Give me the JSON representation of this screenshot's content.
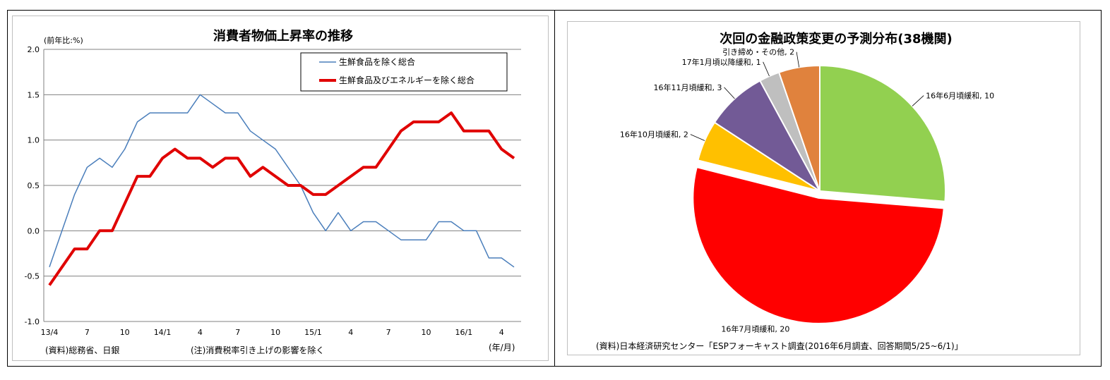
{
  "line_panel": {
    "unit_label": "(前年比:%)",
    "source": "(資料)総務省、日銀",
    "note": "(注)消費税率引き上げの影響を除く",
    "x_unit": "(年/月)"
  },
  "pie_panel": {
    "source": "(資料)日本経済研究センター「ESPフォーキャスト調査(2016年6月調査、回答期間5/25~6/1)」"
  },
  "chart_data": [
    {
      "type": "line",
      "title": "消費者物価上昇率の推移",
      "xlabel": "",
      "ylabel": "",
      "ylim": [
        -1.0,
        2.0
      ],
      "y_ticks": [
        "2.0",
        "1.5",
        "1.0",
        "0.5",
        "0.0",
        "-0.5",
        "-1.0"
      ],
      "x_tick_labels": [
        {
          "i": 0,
          "label": "13/4"
        },
        {
          "i": 3,
          "label": "7"
        },
        {
          "i": 6,
          "label": "10"
        },
        {
          "i": 9,
          "label": "14/1"
        },
        {
          "i": 12,
          "label": "4"
        },
        {
          "i": 15,
          "label": "7"
        },
        {
          "i": 18,
          "label": "10"
        },
        {
          "i": 21,
          "label": "15/1"
        },
        {
          "i": 24,
          "label": "4"
        },
        {
          "i": 27,
          "label": "7"
        },
        {
          "i": 30,
          "label": "10"
        },
        {
          "i": 33,
          "label": "16/1"
        },
        {
          "i": 36,
          "label": "4"
        }
      ],
      "x": [
        "2013/4",
        "2013/5",
        "2013/6",
        "2013/7",
        "2013/8",
        "2013/9",
        "2013/10",
        "2013/11",
        "2013/12",
        "2014/1",
        "2014/2",
        "2014/3",
        "2014/4",
        "2014/5",
        "2014/6",
        "2014/7",
        "2014/8",
        "2014/9",
        "2014/10",
        "2014/11",
        "2014/12",
        "2015/1",
        "2015/2",
        "2015/3",
        "2015/4",
        "2015/5",
        "2015/6",
        "2015/7",
        "2015/8",
        "2015/9",
        "2015/10",
        "2015/11",
        "2015/12",
        "2016/1",
        "2016/2",
        "2016/3",
        "2016/4",
        "2016/5"
      ],
      "grid": true,
      "legend_position": "top-right",
      "series": [
        {
          "name": "生鮮食品を除く総合",
          "color": "#4a7ebb",
          "values": [
            -0.4,
            0.0,
            0.4,
            0.7,
            0.8,
            0.7,
            0.9,
            1.2,
            1.3,
            1.3,
            1.3,
            1.3,
            1.5,
            1.4,
            1.3,
            1.3,
            1.1,
            1.0,
            0.9,
            0.7,
            0.5,
            0.2,
            0.0,
            0.2,
            0.0,
            0.1,
            0.1,
            0.0,
            -0.1,
            -0.1,
            -0.1,
            0.1,
            0.1,
            0.0,
            0.0,
            -0.3,
            -0.3,
            -0.4
          ]
        },
        {
          "name": "生鮮食品及びエネルギーを除く総合",
          "color": "#e00000",
          "values": [
            -0.6,
            -0.4,
            -0.2,
            -0.2,
            0.0,
            0.0,
            0.3,
            0.6,
            0.6,
            0.8,
            0.9,
            0.8,
            0.8,
            0.7,
            0.8,
            0.8,
            0.6,
            0.7,
            0.6,
            0.5,
            0.5,
            0.4,
            0.4,
            0.5,
            0.6,
            0.7,
            0.7,
            0.9,
            1.1,
            1.2,
            1.2,
            1.2,
            1.3,
            1.1,
            1.1,
            1.1,
            0.9,
            0.8
          ]
        }
      ]
    },
    {
      "type": "pie",
      "title": "次回の金融政策変更の予測分布(38機関)",
      "start_angle_deg": 90,
      "direction": "clockwise",
      "slices": [
        {
          "label": "16年6月頃緩和, 10",
          "value": 10,
          "color": "#92d050",
          "explode": false,
          "label_side": "right"
        },
        {
          "label": "16年7月頃緩和, 20",
          "value": 20,
          "color": "#ff0000",
          "explode": true,
          "label_side": "left"
        },
        {
          "label": "16年10月頃緩和, 2",
          "value": 2,
          "color": "#ffc000",
          "explode": false,
          "label_side": "left"
        },
        {
          "label": "16年11月頃緩和, 3",
          "value": 3,
          "color": "#725a96",
          "explode": false,
          "label_side": "left"
        },
        {
          "label": "17年1月頃以降緩和, 1",
          "value": 1,
          "color": "#bfbfbf",
          "explode": false,
          "label_side": "left"
        },
        {
          "label": "引き締め・その他, 2",
          "value": 2,
          "color": "#e0823d",
          "explode": false,
          "label_side": "left"
        }
      ]
    }
  ]
}
